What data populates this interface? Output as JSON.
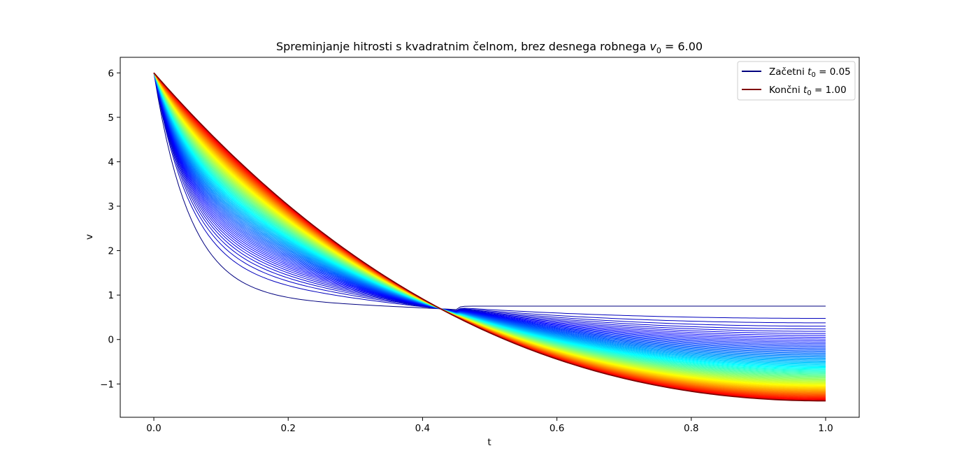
{
  "chart_data": {
    "type": "line",
    "title": "Spreminjanje hitrosti s kvadratnim čelnom, brez desnega robnega v₀ = 6.00",
    "title_parts": {
      "text": "Spreminjanje hitrosti s kvadratnim čelnom, brez desnega robnega ",
      "symbol": "v",
      "subscript": "0",
      "value": " = 6.00"
    },
    "xlabel": "t",
    "ylabel": "v",
    "xlim": [
      -0.05,
      1.05
    ],
    "ylim": [
      -1.75,
      6.35
    ],
    "x_ticks": [
      0.0,
      0.2,
      0.4,
      0.6,
      0.8,
      1.0
    ],
    "x_tick_labels": [
      "0.0",
      "0.2",
      "0.4",
      "0.6",
      "0.8",
      "1.0"
    ],
    "y_ticks": [
      -1,
      0,
      1,
      2,
      3,
      4,
      5,
      6
    ],
    "y_tick_labels": [
      "−1",
      "0",
      "1",
      "2",
      "3",
      "4",
      "5",
      "6"
    ],
    "grid": false,
    "legend_position": "top-right",
    "colormap": "jet",
    "v0": 6.0,
    "series_count": 96,
    "t0_range": [
      0.05,
      1.0
    ],
    "series": [
      {
        "name": "Začetni t₀ = 0.05",
        "label_parts": {
          "text": "Začetni ",
          "symbol": "t",
          "subscript": "0",
          "value": " = 0.05"
        },
        "color": "#00007f",
        "t0": 0.05,
        "t_end": 1.0,
        "v_end": 0.75
      },
      {
        "name": "Končni t₀ = 1.00",
        "label_parts": {
          "text": "Končni ",
          "symbol": "t",
          "subscript": "0",
          "value": " = 1.00"
        },
        "color": "#7f0000",
        "t0": 1.0,
        "t_end": 1.0,
        "v_end": -1.38
      }
    ]
  }
}
